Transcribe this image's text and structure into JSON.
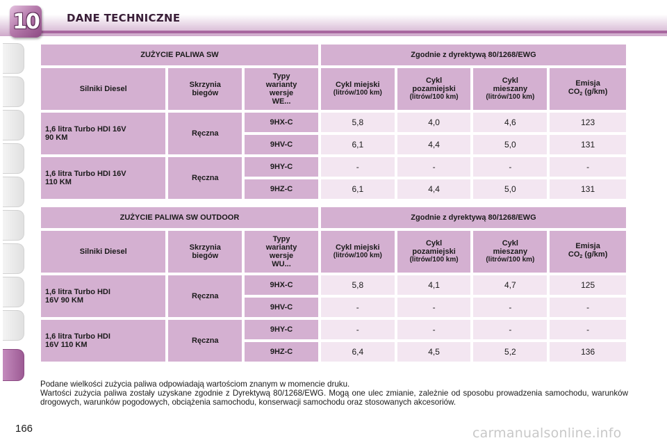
{
  "header": {
    "chapter": "10",
    "title": "DANE TECHNICZNE"
  },
  "page_number": "166",
  "watermark": "carmanualsonline.info",
  "tables": [
    {
      "title_left": "ZUŻYCIE PALIWA SW",
      "title_right": "Zgodnie z dyrektywą 80/1268/EWG",
      "col_engines": "Silniki Diesel",
      "col_gearbox": [
        "Skrzynia",
        "biegów"
      ],
      "col_variants": [
        "Typy",
        "warianty",
        "wersje",
        "WE..."
      ],
      "col_urban": [
        "Cykl miejski",
        "(litrów/100 km)"
      ],
      "col_extra": [
        "Cykl",
        "pozamiejski",
        "(litrów/100 km)"
      ],
      "col_mixed": [
        "Cykl",
        "mieszany",
        "(litrów/100 km)"
      ],
      "col_co2": [
        "Emisja",
        "CO",
        "2",
        "(g/km)"
      ],
      "groups": [
        {
          "engine": [
            "1,6 litra Turbo HDI 16V",
            "90 KM"
          ],
          "gearbox": "Ręczna",
          "rows": [
            {
              "code": "9HX-C",
              "urban": "5,8",
              "extra": "4,0",
              "mixed": "4,6",
              "co2": "123"
            },
            {
              "code": "9HV-C",
              "urban": "6,1",
              "extra": "4,4",
              "mixed": "5,0",
              "co2": "131"
            }
          ]
        },
        {
          "engine": [
            "1,6 litra Turbo HDI 16V",
            "110 KM"
          ],
          "gearbox": "Ręczna",
          "rows": [
            {
              "code": "9HY-C",
              "urban": "-",
              "extra": "-",
              "mixed": "-",
              "co2": "-"
            },
            {
              "code": "9HZ-C",
              "urban": "6,1",
              "extra": "4,4",
              "mixed": "5,0",
              "co2": "131"
            }
          ]
        }
      ]
    },
    {
      "title_left": "ZUŻYCIE PALIWA SW OUTDOOR",
      "title_right": "Zgodnie z dyrektywą 80/1268/EWG",
      "col_engines": "Silniki Diesel",
      "col_gearbox": [
        "Skrzynia",
        "biegów"
      ],
      "col_variants": [
        "Typy",
        "warianty",
        "wersje",
        "WU..."
      ],
      "col_urban": [
        "Cykl miejski",
        "(litrów/100 km)"
      ],
      "col_extra": [
        "Cykl",
        "pozamiejski",
        "(litrów/100 km)"
      ],
      "col_mixed": [
        "Cykl",
        "mieszany",
        "(litrów/100 km)"
      ],
      "col_co2": [
        "Emisja",
        "CO",
        "2",
        "(g/km)"
      ],
      "groups": [
        {
          "engine": [
            "1,6 litra Turbo HDI",
            "16V 90 KM"
          ],
          "gearbox": "Ręczna",
          "rows": [
            {
              "code": "9HX-C",
              "urban": "5,8",
              "extra": "4,1",
              "mixed": "4,7",
              "co2": "125"
            },
            {
              "code": "9HV-C",
              "urban": "-",
              "extra": "-",
              "mixed": "-",
              "co2": "-"
            }
          ]
        },
        {
          "engine": [
            "1,6 litra Turbo HDI",
            "16V 110 KM"
          ],
          "gearbox": "Ręczna",
          "rows": [
            {
              "code": "9HY-C",
              "urban": "-",
              "extra": "-",
              "mixed": "-",
              "co2": "-"
            },
            {
              "code": "9HZ-C",
              "urban": "6,4",
              "extra": "4,5",
              "mixed": "5,2",
              "co2": "136"
            }
          ]
        }
      ]
    }
  ],
  "notes": [
    "Podane wielkości zużycia paliwa odpowiadają wartościom znanym w momencie druku.",
    "Wartości zużycia paliwa zostały uzyskane zgodnie z Dyrektywą 80/1268/EWG. Mogą one ulec zmianie, zależnie od sposobu prowadzenia samochodu, warunków drogowych, warunków pogodowych, obciążenia samochodu, konserwacji samochodu oraz stosowanych akcesoriów."
  ]
}
